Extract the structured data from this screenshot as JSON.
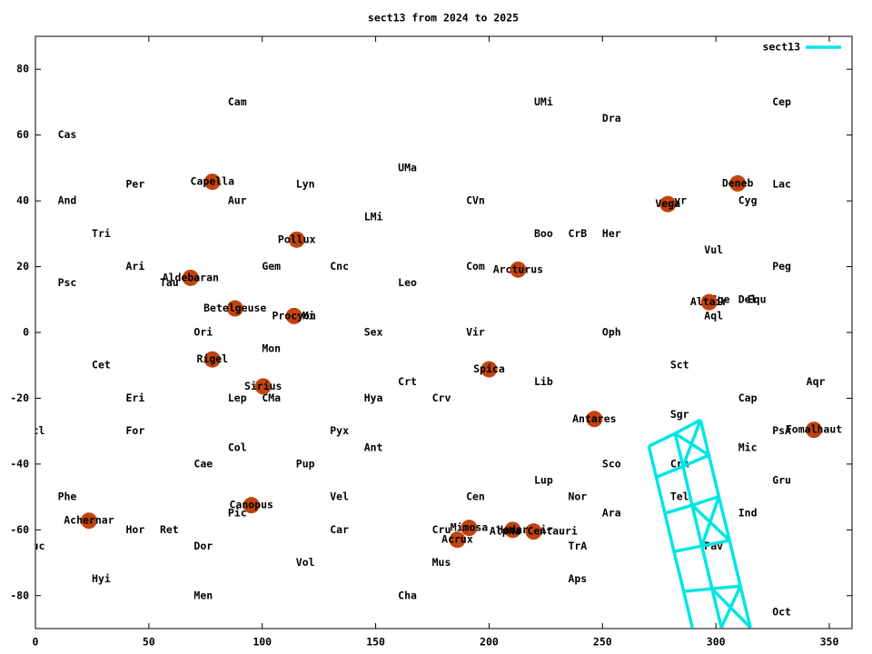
{
  "chart_data": {
    "type": "skymap",
    "title": "sect13 from 2024 to 2025",
    "xlim": [
      0,
      360
    ],
    "ylim": [
      -90,
      90
    ],
    "xticks": [
      0,
      50,
      100,
      150,
      200,
      250,
      300,
      350
    ],
    "yticks": [
      -80,
      -60,
      -40,
      -20,
      0,
      20,
      40,
      60,
      80
    ],
    "grid": false,
    "legend_position": "top-right",
    "series": [
      {
        "name": "sect13",
        "color": "#00e5e5",
        "x": [
          270.4,
          273.7,
          277.5,
          281.5,
          285.8,
          289.6,
          null,
          282,
          285.5,
          289.5,
          293.8,
          298.3,
          302.4,
          null,
          293.2,
          296.9,
          301.3,
          306,
          310.8,
          315.2,
          null,
          270.4,
          282,
          293.2,
          null,
          273.7,
          285.5,
          296.9,
          null,
          277.5,
          289.5,
          301.3,
          null,
          281.5,
          293.8,
          306,
          null,
          285.8,
          298.3,
          310.8,
          null,
          282,
          296.9,
          null,
          293.2,
          285.5,
          null,
          289.5,
          306,
          null,
          301.3,
          293.8,
          null,
          298.3,
          315.2,
          null,
          310.8,
          302.4
        ],
        "values": [
          -34.6,
          -44,
          -55,
          -66.6,
          -78.7,
          -89.7,
          null,
          -30.7,
          -40.7,
          -52.5,
          -64.9,
          -77.9,
          -89.7,
          null,
          -26.6,
          -37.3,
          -49.9,
          -63.2,
          -77.1,
          -89.7,
          null,
          -34.6,
          -30.7,
          -26.6,
          null,
          -44,
          -40.7,
          -37.3,
          null,
          -55,
          -52.5,
          -49.9,
          null,
          -66.6,
          -64.9,
          -63.2,
          null,
          -78.7,
          -77.9,
          -77.1,
          null,
          -30.7,
          -37.3,
          null,
          -26.6,
          -40.7,
          null,
          -52.5,
          -63.2,
          null,
          -49.9,
          -64.9,
          null,
          -77.9,
          -89.7,
          null,
          -77.1,
          -89.7
        ]
      }
    ],
    "labels": {
      "color": "#000000",
      "names": [
        "Cas",
        "Cam",
        "UMi",
        "Dra",
        "Cep",
        "UMa",
        "Per",
        "Lyn",
        "Lac",
        "And",
        "Aur",
        "CVn",
        "Lyr",
        "Cyg",
        "LMi",
        "Tri",
        "Boo",
        "CrB",
        "Her",
        "Vul",
        "Ari",
        "Gem",
        "Cnc",
        "Com",
        "Peg",
        "Psc",
        "Tau",
        "Leo",
        "Aql",
        "Sge",
        "Del",
        "Equ",
        "CMi",
        "Ori",
        "Sex",
        "Vir",
        "Oph",
        "Mon",
        "Cet",
        "Sct",
        "Crt",
        "Lib",
        "Aqr",
        "Eri",
        "Lep",
        "CMa",
        "Hya",
        "Crv",
        "Cap",
        "Sgr",
        "Scl",
        "For",
        "Pyx",
        "PsA",
        "Col",
        "Ant",
        "Mic",
        "Cae",
        "Pup",
        "Sco",
        "CrA",
        "Lup",
        "Gru",
        "Phe",
        "Vel",
        "Cen",
        "Nor",
        "Tel",
        "Pic",
        "Ara",
        "Ind",
        "Hor",
        "Ret",
        "Car",
        "Cru",
        "Cir",
        "Tuc",
        "Dor",
        "TrA",
        "Pav",
        "Mus",
        "Vol",
        "Hyi",
        "Aps",
        "Men",
        "Cha",
        "Oct"
      ],
      "x": [
        14,
        89,
        224,
        254,
        329,
        164,
        44,
        119,
        329,
        14,
        89,
        194,
        283,
        314,
        149,
        29,
        224,
        239,
        254,
        299,
        44,
        104,
        134,
        194,
        329,
        14,
        59,
        164,
        299,
        302,
        314,
        318,
        119,
        74,
        149,
        194,
        254,
        104,
        29,
        284,
        164,
        224,
        344,
        44,
        89,
        104,
        149,
        179,
        314,
        284,
        0,
        44,
        134,
        329,
        89,
        149,
        314,
        74,
        119,
        254,
        284,
        224,
        329,
        14,
        134,
        194,
        239,
        284,
        89,
        254,
        314,
        44,
        59,
        134,
        179,
        224,
        0,
        74,
        239,
        299,
        179,
        119,
        29,
        239,
        74,
        164,
        329
      ],
      "y": [
        60,
        70,
        70,
        65,
        70,
        50,
        45,
        45,
        45,
        40,
        40,
        40,
        40,
        40,
        35,
        30,
        30,
        30,
        30,
        25,
        20,
        20,
        20,
        20,
        20,
        15,
        15,
        15,
        5,
        10,
        10,
        10,
        5,
        0,
        0,
        0,
        0,
        -5,
        -10,
        -10,
        -15,
        -15,
        -15,
        -20,
        -20,
        -20,
        -20,
        -20,
        -20,
        -25,
        -30,
        -30,
        -30,
        -30,
        -35,
        -35,
        -35,
        -40,
        -40,
        -40,
        -40,
        -45,
        -45,
        -50,
        -50,
        -50,
        -50,
        -50,
        -55,
        -55,
        -55,
        -60,
        -60,
        -60,
        -60,
        -60,
        -65,
        -65,
        -65,
        -65,
        -70,
        -70,
        -75,
        -75,
        -80,
        -80,
        -85
      ]
    },
    "stars": {
      "color": "#c0440f",
      "names": [
        "Capella",
        "Deneb",
        "Vega",
        "Pollux",
        "Arcturus",
        "Aldebaran",
        "Altair",
        "Betelgeuse",
        "Procyon",
        "Rigel",
        "Spica",
        "Sirius",
        "Antares",
        "Fomalhaut",
        "Canopus",
        "Achernar",
        "Mimosa",
        "Hadar",
        "Alpha Centauri",
        "Acrux"
      ],
      "x": [
        78,
        309.6,
        278.8,
        115.2,
        212.8,
        68.4,
        297,
        88,
        114,
        78,
        200,
        100.4,
        246.4,
        343.2,
        95.2,
        23.6,
        191.2,
        210.4,
        219.6,
        186
      ],
      "y": [
        45.8,
        45.3,
        39,
        28.2,
        19.1,
        16.6,
        9.2,
        7.3,
        5,
        -8.2,
        -11.2,
        -16.4,
        -26.3,
        -29.6,
        -52.5,
        -57.2,
        -59.4,
        -60,
        -60.5,
        -63
      ]
    }
  }
}
